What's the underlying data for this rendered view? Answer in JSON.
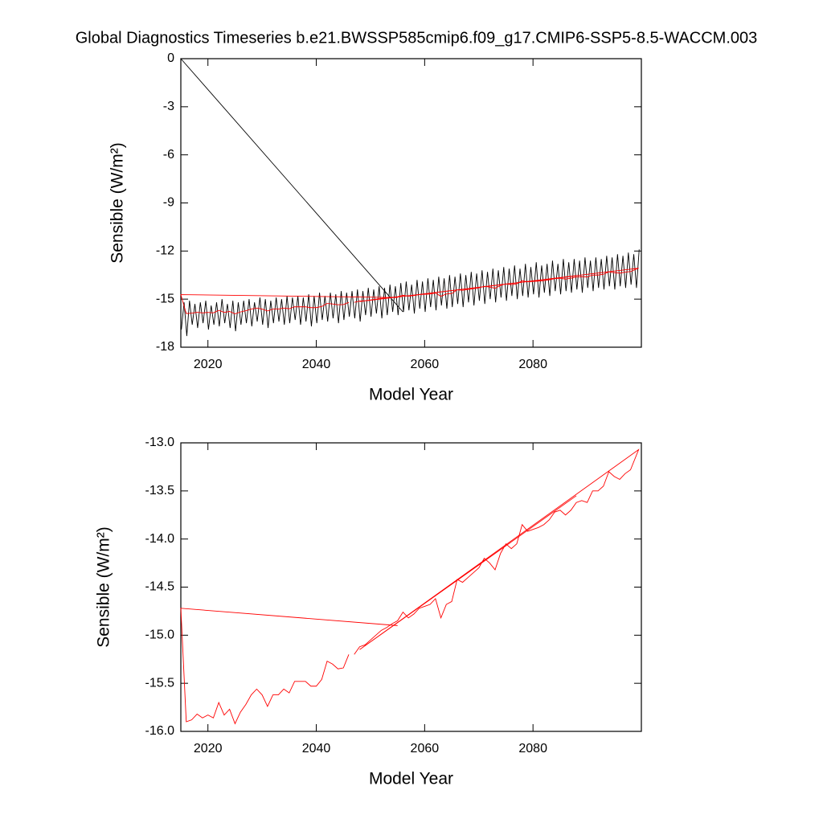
{
  "chart_data": [
    {
      "type": "line",
      "title": "Global Diagnostics Timeseries b.e21.BWSSP585cmip6.f09_g17.CMIP6-SSP5-8.5-WACCM.003",
      "xlabel": "Model Year",
      "ylabel": "Sensible (W/m²)",
      "xlim": [
        2015,
        2100
      ],
      "xticks": [
        2020,
        2040,
        2060,
        2080
      ],
      "ylim": [
        -18,
        0
      ],
      "yticks": [
        -18,
        -15,
        -12,
        -9,
        -6,
        -3,
        0
      ],
      "series": [
        {
          "color": "#000000",
          "x": [
            2015,
            2056,
            null,
            2015.1,
            2015.6,
            2016.1,
            2016.6,
            2017.1,
            2017.6,
            2018.1,
            2018.6,
            2019.1,
            2019.6,
            2020.1,
            2020.6,
            2021.1,
            2021.6,
            2022.1,
            2022.6,
            2023.1,
            2023.6,
            2024.1,
            2024.6,
            2025.1,
            2025.6,
            2026.1,
            2026.6,
            2027.1,
            2027.6,
            2028.1,
            2028.6,
            2029.1,
            2029.6,
            2030.1,
            2030.6,
            2031.1,
            2031.6,
            2032.1,
            2032.6,
            2033.1,
            2033.6,
            2034.1,
            2034.6,
            2035.1,
            2035.6,
            2036.1,
            2036.6,
            2037.1,
            2037.6,
            2038.1,
            2038.6,
            2039.1,
            2039.6,
            2040.1,
            2040.6,
            2041.1,
            2041.6,
            2042.1,
            2042.6,
            2043.1,
            2043.6,
            2044.1,
            2044.6,
            2045.1,
            2045.6,
            2046.1,
            2046.6,
            2047.1,
            2047.6,
            2048.1,
            2048.6,
            2049.1,
            2049.6,
            2050.1,
            2050.6,
            2051.1,
            2051.6,
            2052.1,
            2052.6,
            2053.1,
            2053.6,
            2054.1,
            2054.6,
            2055.1,
            2055.6,
            2056.1,
            2056.6,
            2057.1,
            2057.6,
            2058.1,
            2058.6,
            2059.1,
            2059.6,
            2060.1,
            2060.6,
            2061.1,
            2061.6,
            2062.1,
            2062.6,
            2063.1,
            2063.6,
            2064.1,
            2064.6,
            2065.1,
            2065.6,
            2066.1,
            2066.6,
            2067.1,
            2067.6,
            2068.1,
            2068.6,
            2069.1,
            2069.6,
            2070.1,
            2070.6,
            2071.1,
            2071.6,
            2072.1,
            2072.6,
            2073.1,
            2073.6,
            2074.1,
            2074.6,
            2075.1,
            2075.6,
            2076.1,
            2076.6,
            2077.1,
            2077.6,
            2078.1,
            2078.6,
            2079.1,
            2079.6,
            2080.1,
            2080.6,
            2081.1,
            2081.6,
            2082.1,
            2082.6,
            2083.1,
            2083.6,
            2084.1,
            2084.6,
            2085.1,
            2085.6,
            2086.1,
            2086.6,
            2087.1,
            2087.6,
            2088.1,
            2088.6,
            2089.1,
            2089.6,
            2090.1,
            2090.6,
            2091.1,
            2091.6,
            2092.1,
            2092.6,
            2093.1,
            2093.6,
            2094.1,
            2094.6,
            2095.1,
            2095.6,
            2096.1,
            2096.6,
            2097.1,
            2097.6,
            2098.1,
            2098.6,
            2099.1,
            2099.6
          ],
          "values": [
            0,
            -15.8,
            null,
            -16.9,
            -15.2,
            -17.3,
            -15.1,
            -16.6,
            -15.3,
            -16.8,
            -15.2,
            -16.5,
            -15.1,
            -16.9,
            -15.4,
            -16.6,
            -15.2,
            -16.7,
            -15.0,
            -16.5,
            -15.3,
            -16.8,
            -15.1,
            -17.0,
            -15.2,
            -16.6,
            -15.1,
            -16.5,
            -15.0,
            -16.7,
            -15.2,
            -16.4,
            -14.9,
            -16.6,
            -15.0,
            -16.8,
            -15.1,
            -16.5,
            -14.9,
            -16.4,
            -15.0,
            -16.6,
            -14.8,
            -16.5,
            -14.9,
            -16.3,
            -14.8,
            -16.6,
            -14.9,
            -16.4,
            -14.7,
            -16.7,
            -14.8,
            -16.5,
            -14.6,
            -16.3,
            -14.8,
            -16.4,
            -14.6,
            -16.2,
            -14.7,
            -16.5,
            -14.5,
            -16.3,
            -14.6,
            -16.1,
            -14.5,
            -16.2,
            -14.4,
            -16.4,
            -14.5,
            -16.0,
            -14.3,
            -16.1,
            -14.4,
            -15.9,
            -14.2,
            -16.2,
            -14.3,
            -16.0,
            -14.1,
            -15.8,
            -14.2,
            -16.0,
            -14.0,
            -15.8,
            -13.9,
            -15.7,
            -14.1,
            -15.9,
            -13.8,
            -15.6,
            -13.9,
            -15.8,
            -13.7,
            -15.5,
            -13.8,
            -15.7,
            -13.6,
            -15.4,
            -13.7,
            -15.6,
            -13.5,
            -15.5,
            -13.6,
            -15.3,
            -13.4,
            -15.5,
            -13.5,
            -15.2,
            -13.3,
            -15.4,
            -13.4,
            -15.1,
            -13.2,
            -15.3,
            -13.3,
            -15.0,
            -13.1,
            -15.2,
            -13.2,
            -14.9,
            -13.0,
            -15.1,
            -13.1,
            -14.8,
            -12.9,
            -15.0,
            -13.1,
            -14.8,
            -12.8,
            -14.9,
            -13.0,
            -14.7,
            -12.7,
            -14.9,
            -12.9,
            -14.6,
            -12.8,
            -14.8,
            -12.6,
            -14.5,
            -12.8,
            -14.7,
            -12.5,
            -14.5,
            -12.7,
            -14.6,
            -12.5,
            -14.4,
            -12.6,
            -14.6,
            -12.4,
            -14.3,
            -12.6,
            -14.5,
            -12.4,
            -14.3,
            -12.5,
            -14.4,
            -12.3,
            -14.2,
            -12.4,
            -14.4,
            -12.2,
            -14.2,
            -12.3,
            -14.3,
            -12.1,
            -14.1,
            -12.2,
            -14.3,
            -11.9
          ]
        },
        {
          "color": "#ff0000",
          "x": [
            2055,
            2015,
            2016,
            2017,
            2018,
            2019,
            2020,
            2021,
            2022,
            2023,
            2024,
            2025,
            2026,
            2027,
            2028,
            2029,
            2030,
            2031,
            2032,
            2033,
            2034,
            2035,
            2036,
            2037,
            2038,
            2039,
            2040,
            2041,
            2042,
            2043,
            2044,
            2045,
            2046,
            null,
            2047,
            2048,
            2049,
            2050,
            2051,
            2052,
            2053,
            2054,
            2055,
            2056,
            2057,
            2058,
            2059,
            2060,
            2061,
            2062,
            2063,
            2064,
            2065,
            2066,
            2067,
            2068,
            2069,
            2070,
            2071,
            2072,
            2073,
            2074,
            2075,
            2076,
            2077,
            2078,
            2079,
            2080,
            2081,
            2082,
            2083,
            2084,
            2085,
            2086,
            2087,
            2088,
            2089,
            2090,
            2091,
            2092,
            2093,
            2094,
            2095,
            2096,
            2097,
            2098,
            2099.5,
            2048,
            2088
          ],
          "values": [
            -14.9,
            -14.72,
            -15.9,
            -15.88,
            -15.82,
            -15.86,
            -15.83,
            -15.86,
            -15.7,
            -15.83,
            -15.77,
            -15.92,
            -15.8,
            -15.72,
            -15.62,
            -15.56,
            -15.62,
            -15.74,
            -15.62,
            -15.62,
            -15.56,
            -15.6,
            -15.48,
            -15.48,
            -15.48,
            -15.53,
            -15.53,
            -15.46,
            -15.27,
            -15.3,
            -15.35,
            -15.34,
            -15.2,
            null,
            -15.2,
            -15.12,
            -15.1,
            -15.05,
            -15.0,
            -14.95,
            -14.92,
            -14.88,
            -14.85,
            -14.76,
            -14.82,
            -14.78,
            -14.72,
            -14.7,
            -14.68,
            -14.62,
            -14.82,
            -14.68,
            -14.65,
            -14.42,
            -14.45,
            -14.4,
            -14.35,
            -14.3,
            -14.2,
            -14.25,
            -14.32,
            -14.15,
            -14.05,
            -14.1,
            -14.05,
            -13.85,
            -13.92,
            -13.9,
            -13.88,
            -13.85,
            -13.8,
            -13.72,
            -13.7,
            -13.75,
            -13.7,
            -13.62,
            -13.6,
            -13.62,
            -13.5,
            -13.5,
            -13.45,
            -13.3,
            -13.35,
            -13.38,
            -13.32,
            -13.28,
            -13.07,
            -15.15,
            -13.55
          ]
        }
      ]
    },
    {
      "type": "line",
      "xlabel": "Model Year",
      "ylabel": "Sensible (W/m²)",
      "xlim": [
        2015,
        2100
      ],
      "xticks": [
        2020,
        2040,
        2060,
        2080
      ],
      "ylim": [
        -16,
        -13
      ],
      "yticks": [
        {
          "value": -16,
          "label": "-16.0"
        },
        -15.5,
        {
          "value": -15,
          "label": "-15.0"
        },
        -14.5,
        {
          "value": -14,
          "label": "-14.0"
        },
        -13.5,
        {
          "value": -13,
          "label": "-13.0"
        }
      ],
      "series": [
        {
          "color": "#ff0000",
          "x": [
            2055,
            2015,
            2016,
            2017,
            2018,
            2019,
            2020,
            2021,
            2022,
            2023,
            2024,
            2025,
            2026,
            2027,
            2028,
            2029,
            2030,
            2031,
            2032,
            2033,
            2034,
            2035,
            2036,
            2037,
            2038,
            2039,
            2040,
            2041,
            2042,
            2043,
            2044,
            2045,
            2046,
            null,
            2047,
            2048,
            2049,
            2050,
            2051,
            2052,
            2053,
            2054,
            2055,
            2056,
            2057,
            2058,
            2059,
            2060,
            2061,
            2062,
            2063,
            2064,
            2065,
            2066,
            2067,
            2068,
            2069,
            2070,
            2071,
            2072,
            2073,
            2074,
            2075,
            2076,
            2077,
            2078,
            2079,
            2080,
            2081,
            2082,
            2083,
            2084,
            2085,
            2086,
            2087,
            2088,
            2089,
            2090,
            2091,
            2092,
            2093,
            2094,
            2095,
            2096,
            2097,
            2098,
            2099.5,
            2048,
            2088
          ],
          "values": [
            -14.9,
            -14.72,
            -15.9,
            -15.88,
            -15.82,
            -15.86,
            -15.83,
            -15.86,
            -15.7,
            -15.83,
            -15.77,
            -15.92,
            -15.8,
            -15.72,
            -15.62,
            -15.56,
            -15.62,
            -15.74,
            -15.62,
            -15.62,
            -15.56,
            -15.6,
            -15.48,
            -15.48,
            -15.48,
            -15.53,
            -15.53,
            -15.46,
            -15.27,
            -15.3,
            -15.35,
            -15.34,
            -15.2,
            null,
            -15.2,
            -15.12,
            -15.1,
            -15.05,
            -15.0,
            -14.95,
            -14.92,
            -14.88,
            -14.85,
            -14.76,
            -14.82,
            -14.78,
            -14.72,
            -14.7,
            -14.68,
            -14.62,
            -14.82,
            -14.68,
            -14.65,
            -14.42,
            -14.45,
            -14.4,
            -14.35,
            -14.3,
            -14.2,
            -14.25,
            -14.32,
            -14.15,
            -14.05,
            -14.1,
            -14.05,
            -13.85,
            -13.92,
            -13.9,
            -13.88,
            -13.85,
            -13.8,
            -13.72,
            -13.7,
            -13.75,
            -13.7,
            -13.62,
            -13.6,
            -13.62,
            -13.5,
            -13.5,
            -13.45,
            -13.3,
            -13.35,
            -13.38,
            -13.32,
            -13.28,
            -13.07,
            -15.15,
            -13.55
          ]
        }
      ]
    }
  ]
}
